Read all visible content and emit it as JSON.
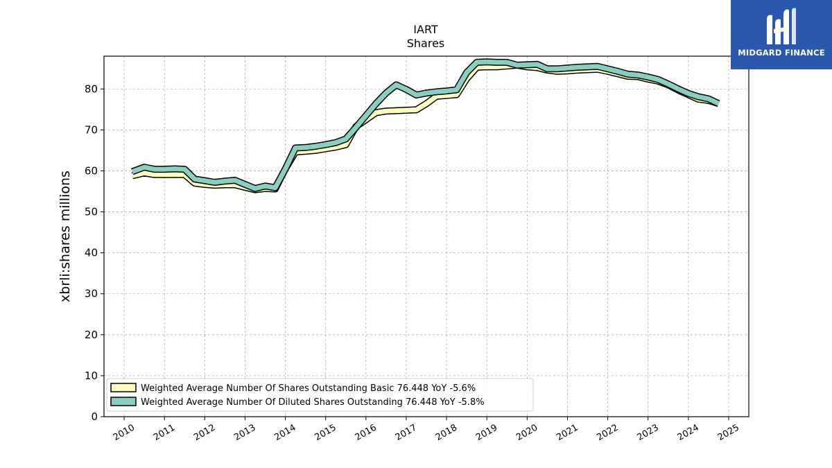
{
  "brand": {
    "name": "MIDGARD FINANCE",
    "color": "#2a58ad"
  },
  "chart_data": {
    "type": "line",
    "title": "IART",
    "subtitle": "Shares",
    "ylabel": "xbrli:shares millions",
    "xlabel": "",
    "ylim": [
      0,
      88
    ],
    "yticks": [
      0,
      10,
      20,
      30,
      40,
      50,
      60,
      70,
      80
    ],
    "xlim": [
      2009.5,
      2025.5
    ],
    "xticks": [
      "2010",
      "2011",
      "2012",
      "2013",
      "2014",
      "2015",
      "2016",
      "2017",
      "2018",
      "2019",
      "2020",
      "2021",
      "2022",
      "2023",
      "2024",
      "2025"
    ],
    "grid": true,
    "legend_position": "lower-left",
    "series": [
      {
        "name": "Weighted Average Number Of Shares Outstanding Basic",
        "legend_label": "Weighted Average Number Of Shares Outstanding Basic  76.448 YoY -5.6%",
        "color": "#ffffc0",
        "x": [
          2010.2,
          2010.5,
          2010.75,
          2011.0,
          2011.25,
          2011.5,
          2011.75,
          2012.0,
          2012.25,
          2012.5,
          2012.75,
          2013.0,
          2013.25,
          2013.5,
          2013.75,
          2014.0,
          2014.25,
          2014.5,
          2014.75,
          2015.0,
          2015.25,
          2015.5,
          2015.75,
          2016.0,
          2016.25,
          2016.5,
          2016.75,
          2017.0,
          2017.25,
          2017.5,
          2017.75,
          2018.0,
          2018.25,
          2018.5,
          2018.75,
          2019.0,
          2019.25,
          2019.5,
          2019.75,
          2020.0,
          2020.25,
          2020.5,
          2020.75,
          2021.0,
          2021.25,
          2021.5,
          2021.75,
          2022.0,
          2022.25,
          2022.5,
          2022.75,
          2023.0,
          2023.25,
          2023.5,
          2023.75,
          2024.0,
          2024.25,
          2024.5,
          2024.75
        ],
        "values": [
          58.8,
          59.5,
          59.1,
          59.1,
          59.1,
          59.1,
          57.0,
          56.7,
          56.5,
          56.6,
          56.6,
          56.0,
          55.4,
          55.7,
          55.6,
          60.5,
          64.6,
          64.8,
          65.0,
          65.4,
          65.8,
          66.4,
          70.8,
          72.5,
          74.2,
          74.6,
          74.7,
          74.8,
          74.9,
          76.4,
          78.2,
          78.4,
          78.6,
          82.5,
          85.3,
          85.4,
          85.4,
          85.6,
          85.8,
          85.4,
          85.2,
          84.6,
          84.3,
          84.4,
          84.6,
          84.7,
          84.8,
          84.3,
          83.7,
          83.1,
          83.0,
          82.4,
          81.9,
          81.0,
          79.7,
          78.6,
          77.5,
          77.2,
          76.448
        ]
      },
      {
        "name": "Weighted Average Number Of Diluted Shares Outstanding",
        "legend_label": "Weighted Average Number Of Diluted Shares Outstanding  76.448 YoY -5.8%",
        "color": "#88cfc0",
        "x": [
          2010.2,
          2010.5,
          2010.75,
          2011.0,
          2011.25,
          2011.5,
          2011.75,
          2012.0,
          2012.25,
          2012.5,
          2012.75,
          2013.0,
          2013.25,
          2013.5,
          2013.75,
          2014.0,
          2014.25,
          2014.5,
          2014.75,
          2015.0,
          2015.25,
          2015.5,
          2015.75,
          2016.0,
          2016.25,
          2016.5,
          2016.75,
          2017.0,
          2017.25,
          2017.5,
          2017.75,
          2018.0,
          2018.25,
          2018.5,
          2018.75,
          2019.0,
          2019.25,
          2019.5,
          2019.75,
          2020.0,
          2020.25,
          2020.5,
          2020.75,
          2021.0,
          2021.25,
          2021.5,
          2021.75,
          2022.0,
          2022.25,
          2022.5,
          2022.75,
          2023.0,
          2023.25,
          2023.5,
          2023.75,
          2024.0,
          2024.25,
          2024.5,
          2024.75
        ],
        "values": [
          59.8,
          60.9,
          60.4,
          60.4,
          60.5,
          60.4,
          58.0,
          57.6,
          57.2,
          57.5,
          57.7,
          56.7,
          55.7,
          56.3,
          55.9,
          60.5,
          65.6,
          65.7,
          66.0,
          66.4,
          66.9,
          67.8,
          70.6,
          73.5,
          76.4,
          79.0,
          81.0,
          79.9,
          78.5,
          79.0,
          79.3,
          79.5,
          79.8,
          84.0,
          86.5,
          86.6,
          86.5,
          86.5,
          85.8,
          85.9,
          86.0,
          84.9,
          84.9,
          85.1,
          85.3,
          85.4,
          85.5,
          84.9,
          84.3,
          83.6,
          83.4,
          82.9,
          82.3,
          81.2,
          80.0,
          78.9,
          78.1,
          77.6,
          76.448
        ]
      }
    ]
  }
}
